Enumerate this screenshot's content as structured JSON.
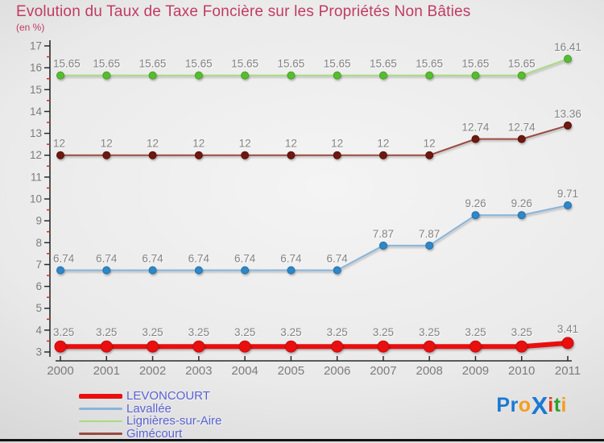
{
  "header": {
    "title": "Evolution du Taux de Taxe Foncière sur les Propriétés Non Bâties",
    "subtitle": "(en %)"
  },
  "chart_data": {
    "type": "line",
    "title": "Evolution du Taux de Taxe Foncière sur les Propriétés Non Bâties",
    "ylabel": "(en %)",
    "x": [
      2000,
      2001,
      2002,
      2003,
      2004,
      2005,
      2006,
      2007,
      2008,
      2009,
      2010,
      2011
    ],
    "ylim": [
      3,
      17
    ],
    "y_major_step": 1,
    "y_minor_step": 0.5,
    "grid": false,
    "legend_position": "bottom-left",
    "point_labels": true,
    "series": [
      {
        "name": "LEVONCOURT",
        "thick": true,
        "line_color": "#e90f0f",
        "marker_color": "#e90f0f",
        "marker_edge": "#c50d0d",
        "values": [
          3.25,
          3.25,
          3.25,
          3.25,
          3.25,
          3.25,
          3.25,
          3.25,
          3.25,
          3.25,
          3.25,
          3.41
        ]
      },
      {
        "name": "Lavallée",
        "thick": false,
        "line_color": "#88b5da",
        "marker_color": "#2e87c8",
        "marker_edge": "#2470a8",
        "values": [
          6.74,
          6.74,
          6.74,
          6.74,
          6.74,
          6.74,
          6.74,
          7.87,
          7.87,
          9.26,
          9.26,
          9.71
        ]
      },
      {
        "name": "Lignières-sur-Aire",
        "thick": false,
        "line_color": "#a8dc80",
        "marker_color": "#57bd30",
        "marker_edge": "#46a024",
        "values": [
          15.65,
          15.65,
          15.65,
          15.65,
          15.65,
          15.65,
          15.65,
          15.65,
          15.65,
          15.65,
          15.65,
          16.41
        ]
      },
      {
        "name": "Gimécourt",
        "thick": false,
        "line_color": "#9a4a40",
        "marker_color": "#6e1812",
        "marker_edge": "#591009",
        "values": [
          12,
          12,
          12,
          12,
          12,
          12,
          12,
          12,
          12,
          12.74,
          12.74,
          13.36
        ]
      }
    ]
  },
  "legend": {
    "items": [
      {
        "label": "LEVONCOURT",
        "swatch_color": "#e90f0f",
        "thick": true
      },
      {
        "label": "Lavallée",
        "swatch_color": "#88b5da",
        "thick": false
      },
      {
        "label": "Lignières-sur-Aire",
        "swatch_color": "#a8dc80",
        "thick": false
      },
      {
        "label": "Gimécourt",
        "swatch_color": "#9a4a40",
        "thick": false
      }
    ]
  },
  "logo": {
    "name": "Proxiti",
    "letters": [
      {
        "ch": "P",
        "color": "#1b79d2",
        "big": false
      },
      {
        "ch": "r",
        "color": "#1b79d2",
        "big": false
      },
      {
        "ch": "o",
        "color": "#f59d20",
        "big": false
      },
      {
        "ch": "X",
        "color": "#1b79d2",
        "big": true
      },
      {
        "ch": "i",
        "color": "#e23a1e",
        "big": false
      },
      {
        "ch": "t",
        "color": "#2ea12e",
        "big": false
      },
      {
        "ch": "i",
        "color": "#f59d20",
        "big": false
      }
    ]
  },
  "colors": {
    "title": "#c13b63",
    "axis": "#2b2b2b",
    "minor_tick": "#d03018",
    "axis_text": "#7c7c7c",
    "value_label": "#848484",
    "legend_text": "#5a62d2",
    "bottom_border": "#141414"
  }
}
